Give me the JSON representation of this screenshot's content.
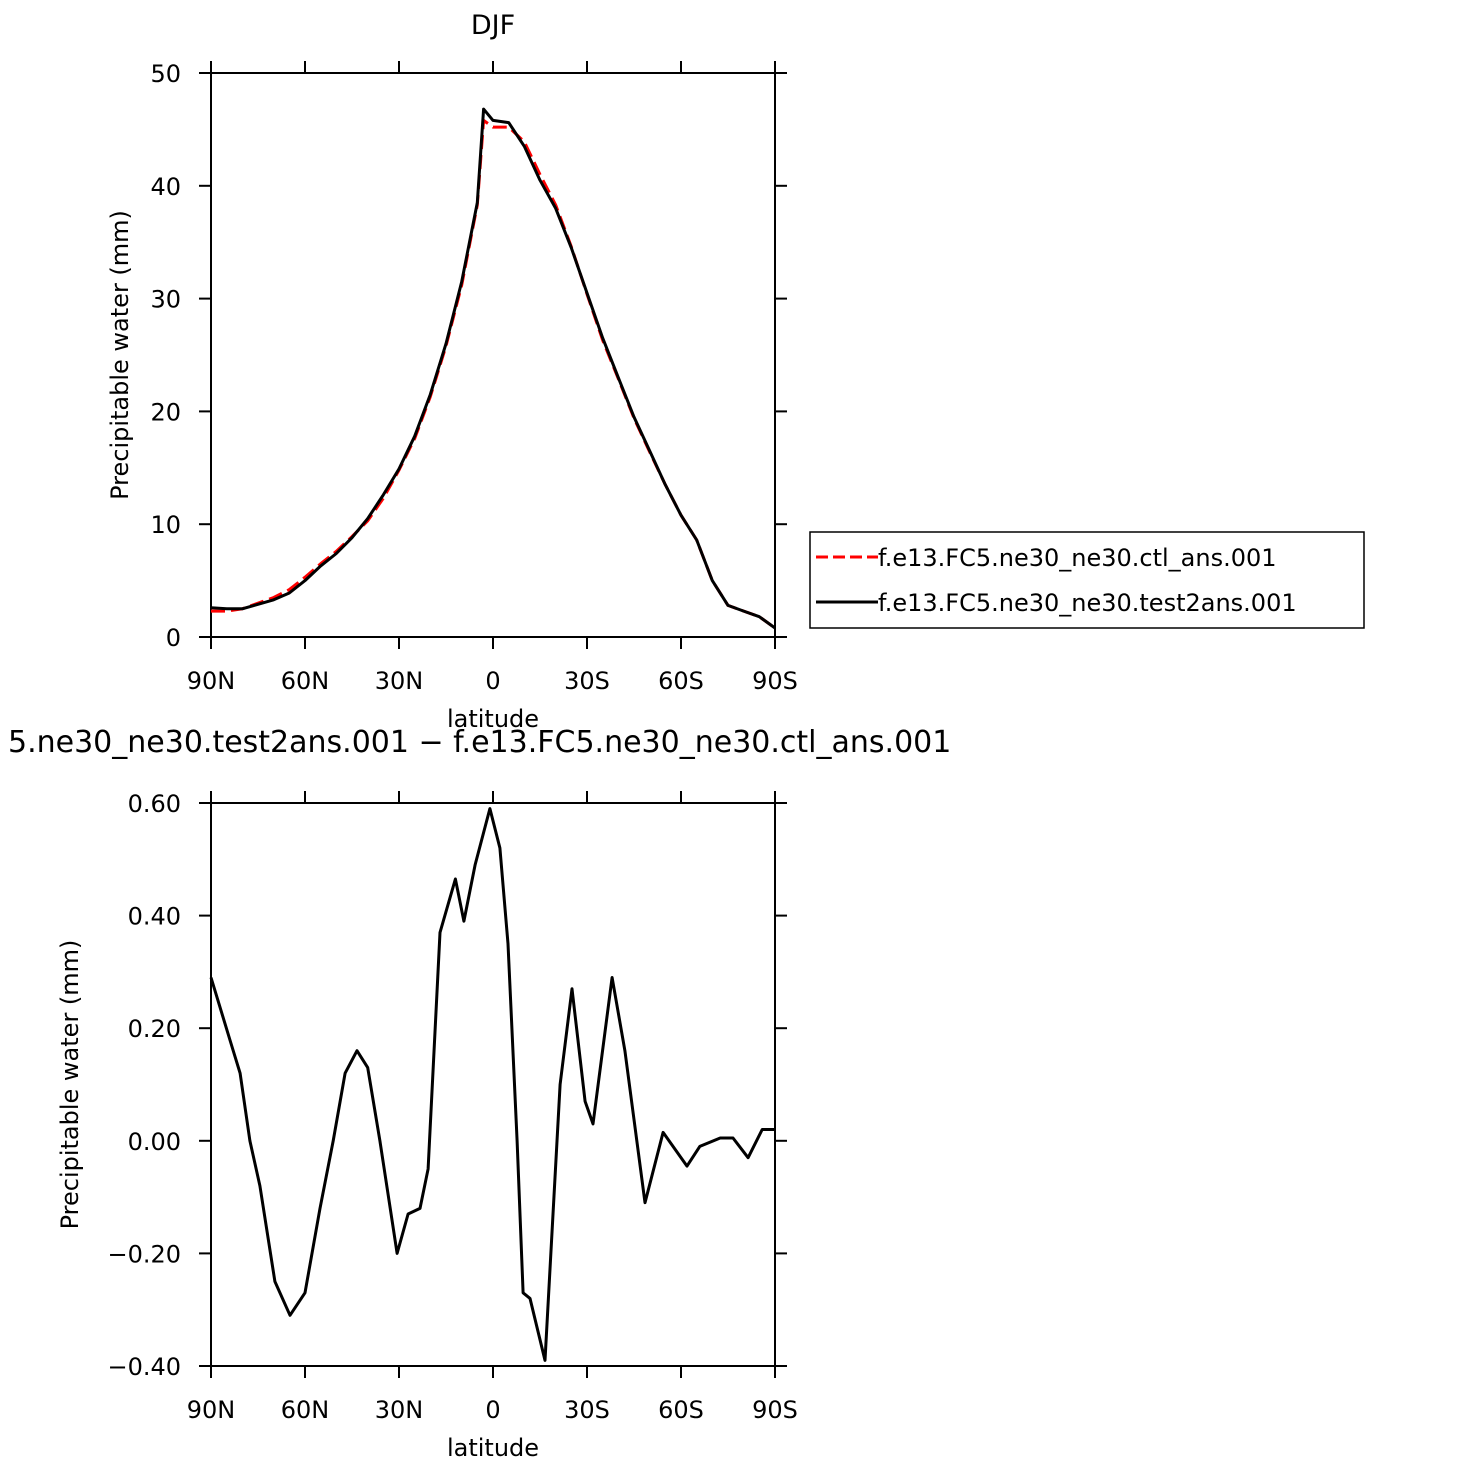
{
  "chart_data": [
    {
      "type": "line",
      "title": "DJF",
      "xlabel": "latitude",
      "ylabel": "Precipitable water (mm)",
      "xlim": [
        90,
        -90
      ],
      "xticks": [
        {
          "value": 90,
          "label": "90N"
        },
        {
          "value": 60,
          "label": "60N"
        },
        {
          "value": 30,
          "label": "30N"
        },
        0,
        {
          "value": -30,
          "label": "30S"
        },
        {
          "value": -60,
          "label": "60S"
        },
        {
          "value": -90,
          "label": "90S"
        }
      ],
      "ylim": [
        0,
        50
      ],
      "yticks": [
        0,
        10,
        20,
        30,
        40,
        50
      ],
      "legend": "outside-right",
      "x": [
        90,
        85,
        80,
        75,
        70,
        65,
        60,
        55,
        50,
        45,
        40,
        35,
        30,
        25,
        20,
        15,
        10,
        5,
        3,
        0,
        -5,
        -10,
        -15,
        -20,
        -25,
        -30,
        -35,
        -40,
        -45,
        -50,
        -55,
        -60,
        -65,
        -70,
        -75,
        -80,
        -85,
        -90
      ],
      "series": [
        {
          "name": "f.e13.FC5.ne30_ne30.ctl_ans.001",
          "color": "#ff0000",
          "dash": true,
          "values": [
            2.3,
            2.3,
            2.5,
            3.0,
            3.5,
            4.2,
            5.3,
            6.5,
            7.6,
            8.9,
            10.3,
            12.3,
            14.8,
            17.6,
            21.3,
            25.8,
            31.2,
            38.3,
            45.8,
            45.2,
            45.2,
            43.9,
            41.0,
            38.3,
            34.6,
            30.4,
            26.3,
            22.9,
            19.4,
            16.4,
            13.5,
            10.8,
            8.6,
            5.0,
            2.8,
            2.3,
            1.8,
            0.8
          ]
        },
        {
          "name": "f.e13.FC5.ne30_ne30.test2ans.001",
          "color": "#000000",
          "dash": false,
          "values": [
            2.6,
            2.5,
            2.5,
            2.9,
            3.3,
            3.9,
            5.0,
            6.3,
            7.4,
            8.8,
            10.5,
            12.6,
            14.9,
            17.8,
            21.5,
            26.0,
            31.5,
            38.5,
            46.8,
            45.8,
            45.6,
            43.5,
            40.5,
            38.0,
            34.5,
            30.5,
            26.5,
            23.0,
            19.5,
            16.5,
            13.5,
            10.8,
            8.6,
            5.0,
            2.8,
            2.3,
            1.8,
            0.8
          ]
        }
      ]
    },
    {
      "type": "line",
      "title": "5.ne30_ne30.test2ans.001 − f.e13.FC5.ne30_ne30.ctl_ans.001",
      "xlabel": "latitude",
      "ylabel": "Precipitable water (mm)",
      "xlim": [
        90,
        -90
      ],
      "xticks": [
        {
          "value": 90,
          "label": "90N"
        },
        {
          "value": 60,
          "label": "60N"
        },
        {
          "value": 30,
          "label": "30N"
        },
        0,
        {
          "value": -30,
          "label": "30S"
        },
        {
          "value": -60,
          "label": "60S"
        },
        {
          "value": -90,
          "label": "90S"
        }
      ],
      "ylim": [
        -0.4,
        0.6
      ],
      "yticks": [
        {
          "value": -0.4,
          "label": "−0.40"
        },
        {
          "value": -0.2,
          "label": "−0.20"
        },
        {
          "value": 0,
          "label": "0.00"
        },
        {
          "value": 0.2,
          "label": "0.20"
        },
        {
          "value": 0.4,
          "label": "0.40"
        },
        {
          "value": 0.6,
          "label": "0.60"
        }
      ],
      "x": [
        90,
        84,
        80.7,
        77.6,
        74.4,
        69.6,
        64.8,
        60,
        55.2,
        51,
        47.2,
        43.4,
        40,
        36.1,
        30.6,
        27.1,
        23.3,
        20.7,
        16.9,
        12,
        9.3,
        5.7,
        1,
        -2.2,
        -4.8,
        -7.7,
        -9.6,
        -11.8,
        -16.6,
        -21.4,
        -25.2,
        -29.4,
        -31.9,
        -38,
        -42.1,
        -48.5,
        -54.3,
        -61.9,
        -66,
        -72.5,
        -76.6,
        -81.4,
        -85.9,
        -90
      ],
      "series": [
        {
          "name": "difference",
          "color": "#000000",
          "dash": false,
          "values": [
            0.29,
            0.18,
            0.12,
            0.0,
            -0.08,
            -0.25,
            -0.31,
            -0.27,
            -0.12,
            0.0,
            0.12,
            0.16,
            0.13,
            0.0,
            -0.2,
            -0.13,
            -0.12,
            -0.05,
            0.37,
            0.465,
            0.39,
            0.49,
            0.59,
            0.52,
            0.35,
            0.0,
            -0.27,
            -0.28,
            -0.39,
            0.1,
            0.27,
            0.07,
            0.03,
            0.29,
            0.16,
            -0.11,
            0.015,
            -0.045,
            -0.01,
            0.005,
            0.005,
            -0.03,
            0.02,
            0.02
          ]
        }
      ]
    }
  ]
}
